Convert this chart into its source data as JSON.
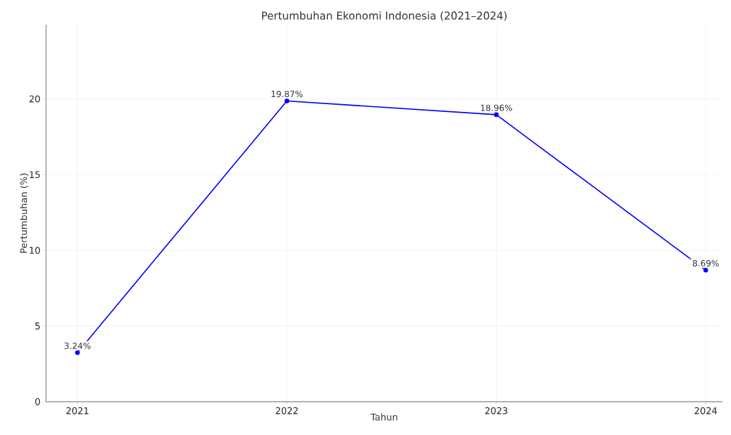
{
  "chart_data": {
    "type": "line",
    "title": "Pertumbuhan Ekonomi Indonesia (2021–2024)",
    "xlabel": "Tahun",
    "ylabel": "Pertumbuhan (%)",
    "x": [
      2021,
      2022,
      2023,
      2024
    ],
    "series": [
      {
        "color": "#0000ff",
        "values": [
          3.24,
          19.87,
          18.96,
          8.69
        ],
        "value_labels": [
          "3.24%",
          "19.87%",
          "18.96%",
          "8.69%"
        ]
      }
    ],
    "xlim": [
      2020.85,
      2024.08
    ],
    "ylim": [
      0,
      24.9
    ],
    "xticks": [
      2021,
      2022,
      2023,
      2024
    ],
    "yticks": [
      0,
      5,
      10,
      15,
      20
    ],
    "grid": true,
    "marker": "circle",
    "line_style": "solid"
  }
}
